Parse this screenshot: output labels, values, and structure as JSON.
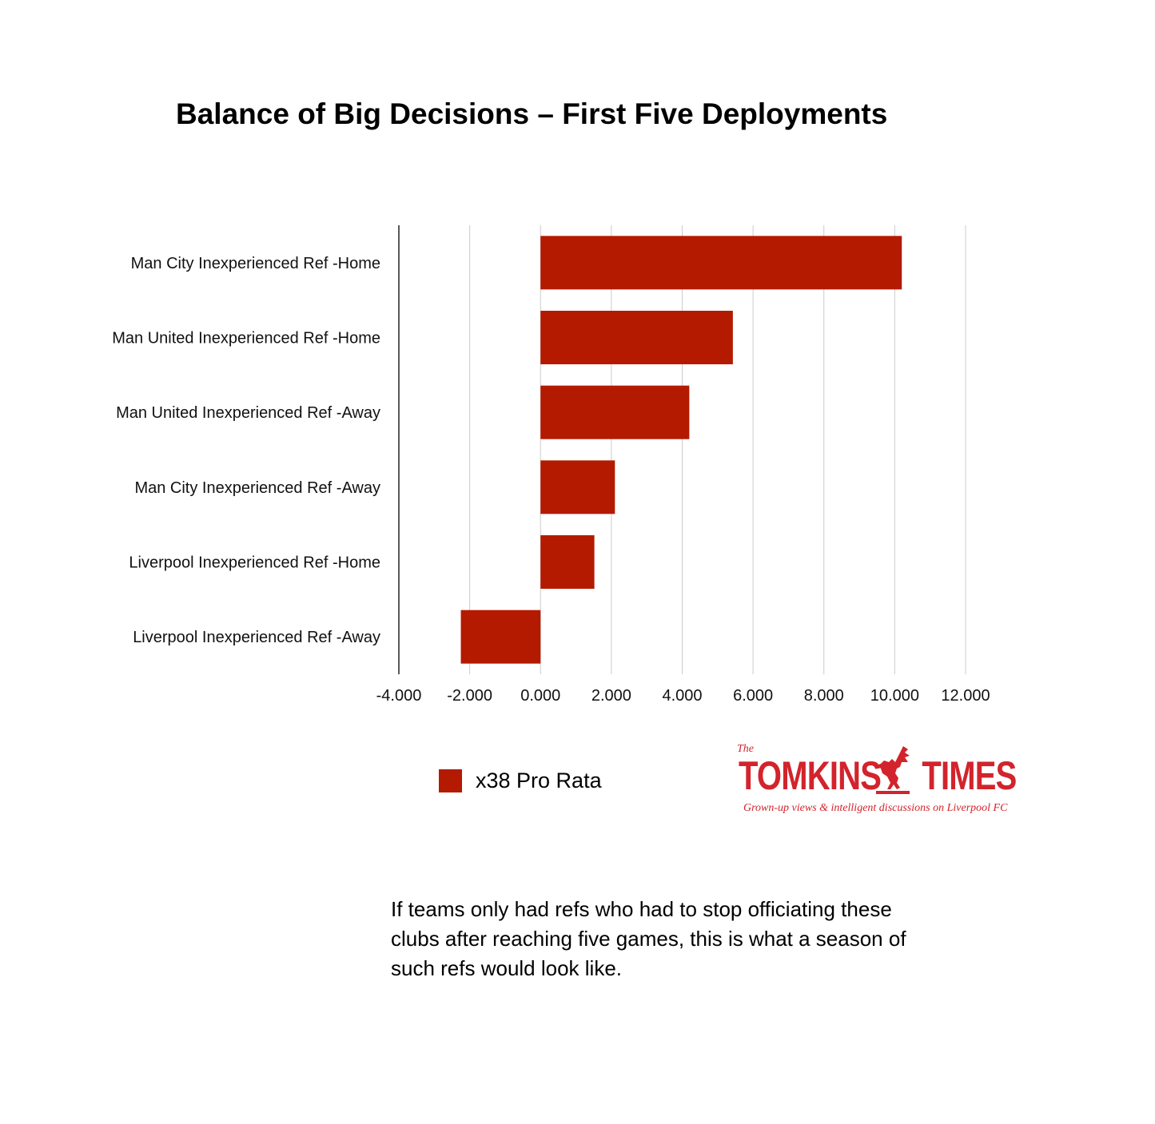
{
  "title": "Balance of Big Decisions – First Five Deployments",
  "chart_data": {
    "type": "bar",
    "orientation": "horizontal",
    "categories": [
      "Man City Inexperienced Ref -Home",
      "Man United Inexperienced Ref -Home",
      "Man United Inexperienced Ref -Away",
      "Man City Inexperienced Ref -Away",
      "Liverpool Inexperienced Ref -Home",
      "Liverpool Inexperienced Ref -Away"
    ],
    "series": [
      {
        "name": "x38 Pro Rata",
        "color": "#b31a00",
        "values": [
          10.2,
          5.43,
          4.2,
          2.1,
          1.52,
          -2.25
        ]
      }
    ],
    "xlim": [
      -4,
      12
    ],
    "xticks": [
      -4,
      -2,
      0,
      2,
      4,
      6,
      8,
      10,
      12
    ],
    "xtick_labels": [
      "-4.000",
      "-2.000",
      "0.000",
      "2.000",
      "4.000",
      "6.000",
      "8.000",
      "10.000",
      "12.000"
    ],
    "grid": "vertical",
    "legend_position": "bottom"
  },
  "legend": {
    "label": "x38 Pro Rata",
    "color": "#b31a00"
  },
  "logo": {
    "the": "The",
    "name_left": "TOMKINS",
    "name_right": "TIMES",
    "tagline": "Grown-up views & intelligent discussions on Liverpool FC",
    "color": "#d3232c"
  },
  "caption": "If teams only had refs who had to stop officiating these clubs after reaching five games, this is what a season of such refs would look like."
}
